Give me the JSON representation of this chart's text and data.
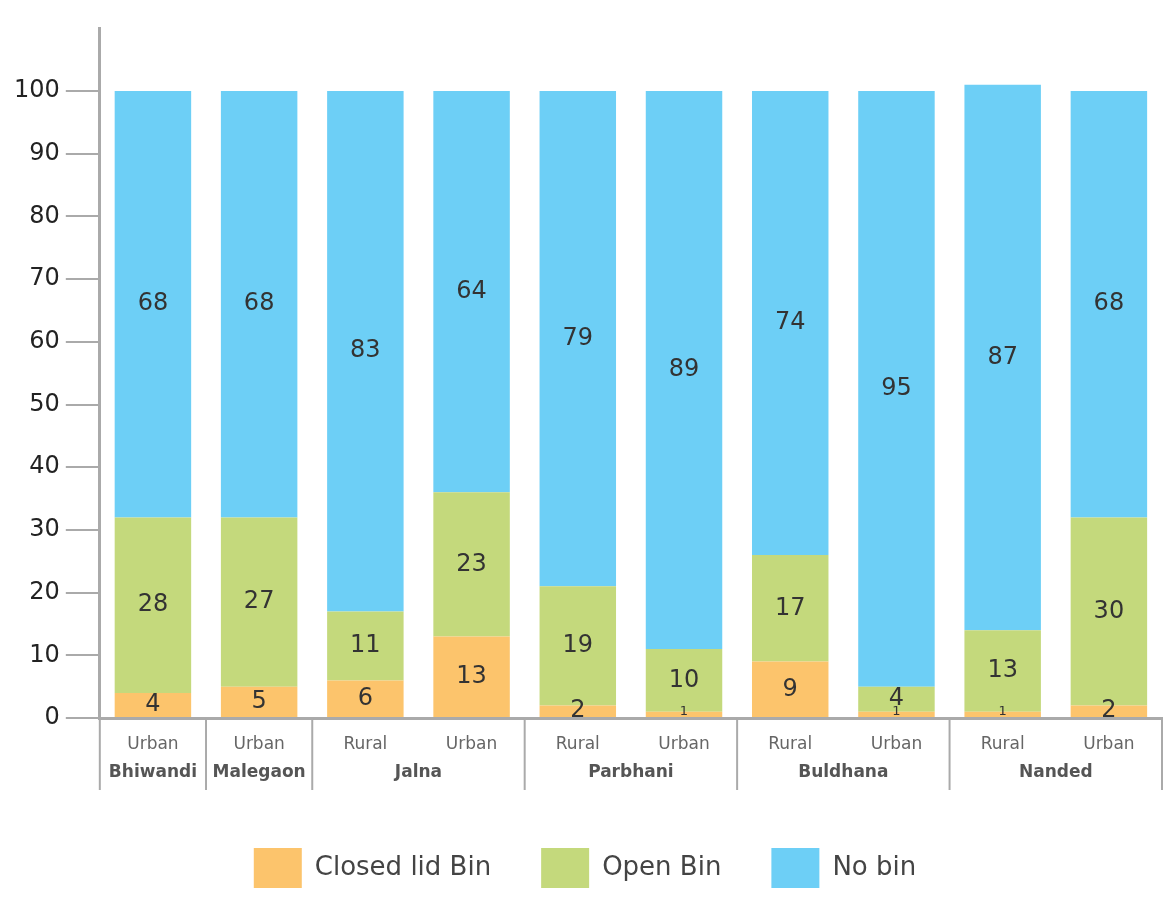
{
  "chart_data": {
    "type": "bar",
    "stacked": true,
    "categories": [
      "Urban",
      "Urban",
      "Rural",
      "Urban",
      "Rural",
      "Urban",
      "Rural",
      "Urban",
      "Rural",
      "Urban"
    ],
    "annotations": [
      "Bhiwandi",
      "Malegaon",
      "Jalna",
      "Parbhani",
      "Buldhana",
      "Nanded"
    ],
    "series": [
      {
        "name": "Closed lid Bin",
        "color": "#fcc46c",
        "values": [
          4,
          5,
          6,
          13,
          2,
          1,
          9,
          1,
          1,
          2
        ]
      },
      {
        "name": "Open Bin",
        "color": "#c4d97c",
        "values": [
          28,
          27,
          11,
          23,
          19,
          10,
          17,
          4,
          13,
          30
        ]
      },
      {
        "name": "No bin",
        "color": "#6dcff6",
        "values": [
          68,
          68,
          83,
          64,
          79,
          89,
          74,
          95,
          87,
          68
        ]
      }
    ],
    "ylim": [
      0,
      110
    ],
    "yticks": [
      0,
      10,
      20,
      30,
      40,
      50,
      60,
      70,
      80,
      90,
      100
    ],
    "grid": false,
    "legend": "bottom",
    "data_labels": true
  }
}
